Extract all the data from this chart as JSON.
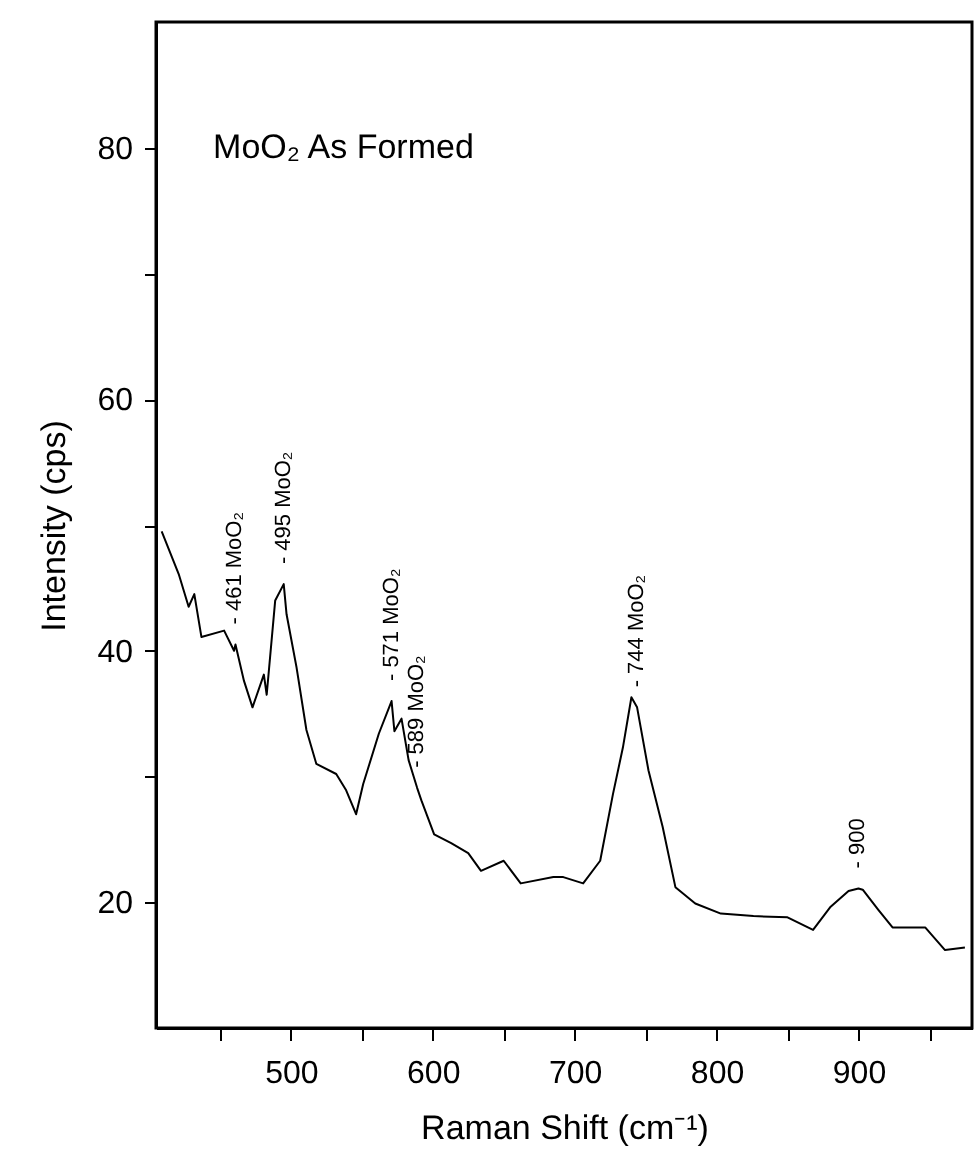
{
  "chart_data": {
    "type": "line",
    "title": "MoO₂ As Formed",
    "xlabel": "Raman Shift (cm⁻¹)",
    "ylabel": "Intensity (cps)",
    "xlim": [
      405,
      980
    ],
    "ylim": [
      10,
      90
    ],
    "xticks": [
      {
        "value": 450,
        "label": null
      },
      500,
      {
        "value": 550,
        "label": null
      },
      600,
      {
        "value": 650,
        "label": null
      },
      700,
      {
        "value": 750,
        "label": null
      },
      800,
      {
        "value": 850,
        "label": null
      },
      900,
      {
        "value": 950,
        "label": null
      }
    ],
    "yticks": [
      20,
      {
        "value": 30,
        "label": null
      },
      40,
      {
        "value": 50,
        "label": null
      },
      60,
      {
        "value": 70,
        "label": null
      },
      80
    ],
    "grid": false,
    "marker": "none",
    "line_style": "solid",
    "series": [
      {
        "color": "#000000",
        "x": [
          409,
          421,
          428,
          432,
          437,
          453,
          460,
          461,
          467,
          473,
          481,
          483,
          489,
          495,
          497,
          504,
          511,
          518,
          532,
          539,
          546,
          551,
          562,
          571,
          573,
          578,
          583,
          589,
          592,
          601,
          613,
          625,
          634,
          650,
          662,
          685,
          692,
          706,
          718,
          727,
          734,
          740,
          744,
          752,
          762,
          771,
          785,
          803,
          826,
          850,
          868,
          880,
          893,
          900,
          903,
          914,
          924,
          947,
          961,
          975
        ],
        "values": [
          49.5,
          46.1,
          43.5,
          44.5,
          41.1,
          41.6,
          40,
          40.5,
          37.6,
          35.5,
          38.1,
          36.5,
          44,
          45.3,
          42.9,
          38.7,
          33.7,
          31,
          30.2,
          28.9,
          27,
          29.4,
          33.4,
          36,
          33.6,
          34.6,
          31.3,
          29.1,
          28.1,
          25.4,
          24.7,
          23.9,
          22.5,
          23.3,
          21.5,
          22,
          22,
          21.5,
          23.3,
          28.6,
          32.3,
          36.3,
          35.5,
          30.5,
          26,
          21.2,
          19.9,
          19.1,
          18.9,
          18.8,
          17.8,
          19.6,
          20.9,
          21.1,
          21,
          19.4,
          18,
          18,
          16.2,
          16.4
        ]
      }
    ],
    "annotations": [
      {
        "text": "- 461 MoO₂",
        "x": 461,
        "y": 40.5
      },
      {
        "text": "- 495 MoO₂",
        "x": 495,
        "y": 45.3
      },
      {
        "text": "- 571 MoO₂",
        "x": 571,
        "y": 36
      },
      {
        "text": "- 589 MoO₂",
        "x": 589,
        "y": 29.1
      },
      {
        "text": "- 744 MoO₂",
        "x": 744,
        "y": 35.5
      },
      {
        "text": "- 900",
        "x": 900,
        "y": 21.1
      }
    ]
  }
}
